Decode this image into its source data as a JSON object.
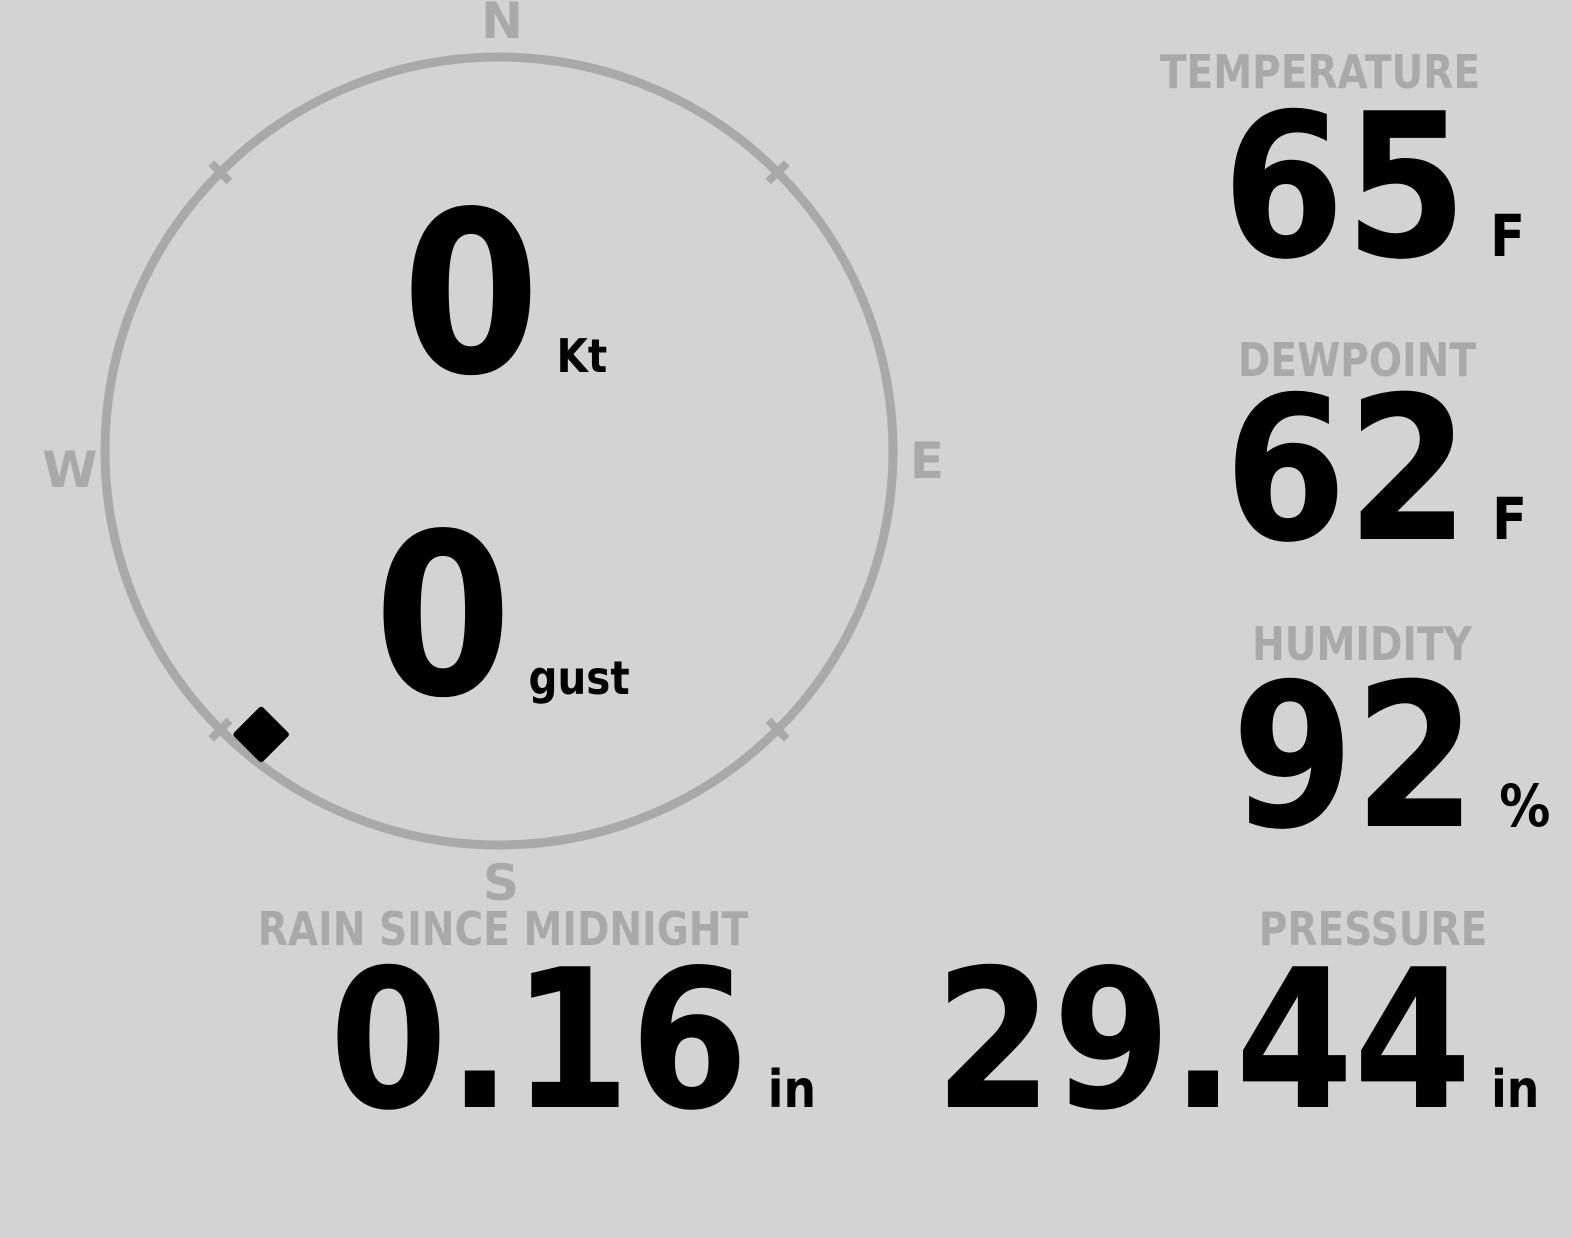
{
  "colors": {
    "background": "#d3d3d3",
    "muted": "#a9a9a9",
    "ink": "#000000"
  },
  "compass": {
    "cardinals": {
      "north": "N",
      "east": "E",
      "south": "S",
      "west": "W"
    },
    "speed": {
      "value": "0",
      "unit": "Kt"
    },
    "gust": {
      "value": "0",
      "unit": "gust"
    },
    "wind_direction_deg": 220
  },
  "metrics": [
    {
      "id": "temperature",
      "label": "TEMPERATURE",
      "value": "65",
      "unit": "F"
    },
    {
      "id": "dewpoint",
      "label": "DEWPOINT",
      "value": "62",
      "unit": "F"
    },
    {
      "id": "humidity",
      "label": "HUMIDITY",
      "value": "92",
      "unit": "%"
    },
    {
      "id": "rain-since-midnight",
      "label": "RAIN SINCE MIDNIGHT",
      "value": "0.16",
      "unit": "in"
    },
    {
      "id": "pressure",
      "label": "PRESSURE",
      "value": "29.44",
      "unit": "in"
    }
  ]
}
